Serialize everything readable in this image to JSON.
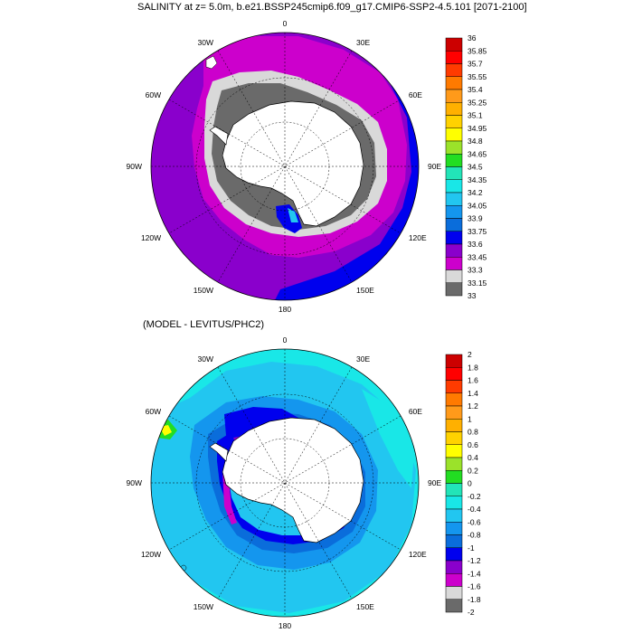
{
  "title": "SALINITY at z=   5.0m, b.e21.BSSP245cmip6.f09_g17.CMIP6-SSP2-4.5.101 [2071-2100]",
  "subtitle": "(MODEL - LEVITUS/PHC2)",
  "longitude_labels": [
    "0",
    "30E",
    "60E",
    "90E",
    "120E",
    "150E",
    "180",
    "150W",
    "120W",
    "90W",
    "60W",
    "30W"
  ],
  "colors": {
    "land": "#ffffff",
    "top_scale": [
      "#6a6a6a",
      "#d9d9d9",
      "#cc00cc",
      "#8a00cc",
      "#0000ee",
      "#0a6ddb",
      "#1496ee",
      "#22c6f0",
      "#19e7e7",
      "#22e4b8",
      "#22dd22",
      "#9be22a",
      "#ffff00",
      "#ffd200",
      "#ffb000",
      "#ff9a1a",
      "#ff7a00",
      "#ff3b00",
      "#ff0000",
      "#cc0000"
    ],
    "bottom_scale": [
      "#6a6a6a",
      "#d9d9d9",
      "#cc00cc",
      "#8a00cc",
      "#0000ee",
      "#0a6ddb",
      "#1496ee",
      "#22c6f0",
      "#19e7e7",
      "#22e4b8",
      "#22dd22",
      "#9be22a",
      "#ffff00",
      "#ffd200",
      "#ffb000",
      "#ff9a1a",
      "#ff7a00",
      "#ff3b00",
      "#ff0000",
      "#cc0000"
    ]
  },
  "top_colorbar_labels": [
    "36",
    "35.85",
    "35.7",
    "35.55",
    "35.4",
    "35.25",
    "35.1",
    "34.95",
    "34.8",
    "34.65",
    "34.5",
    "34.35",
    "34.2",
    "34.05",
    "33.9",
    "33.75",
    "33.6",
    "33.45",
    "33.3",
    "33.15",
    "33"
  ],
  "bottom_colorbar_labels": [
    "2",
    "1.8",
    "1.6",
    "1.4",
    "1.2",
    "1",
    "0.8",
    "0.6",
    "0.4",
    "0.2",
    "0",
    "-0.2",
    "-0.4",
    "-0.6",
    "-0.8",
    "-1",
    "-1.2",
    "-1.4",
    "-1.6",
    "-1.8",
    "-2"
  ]
}
